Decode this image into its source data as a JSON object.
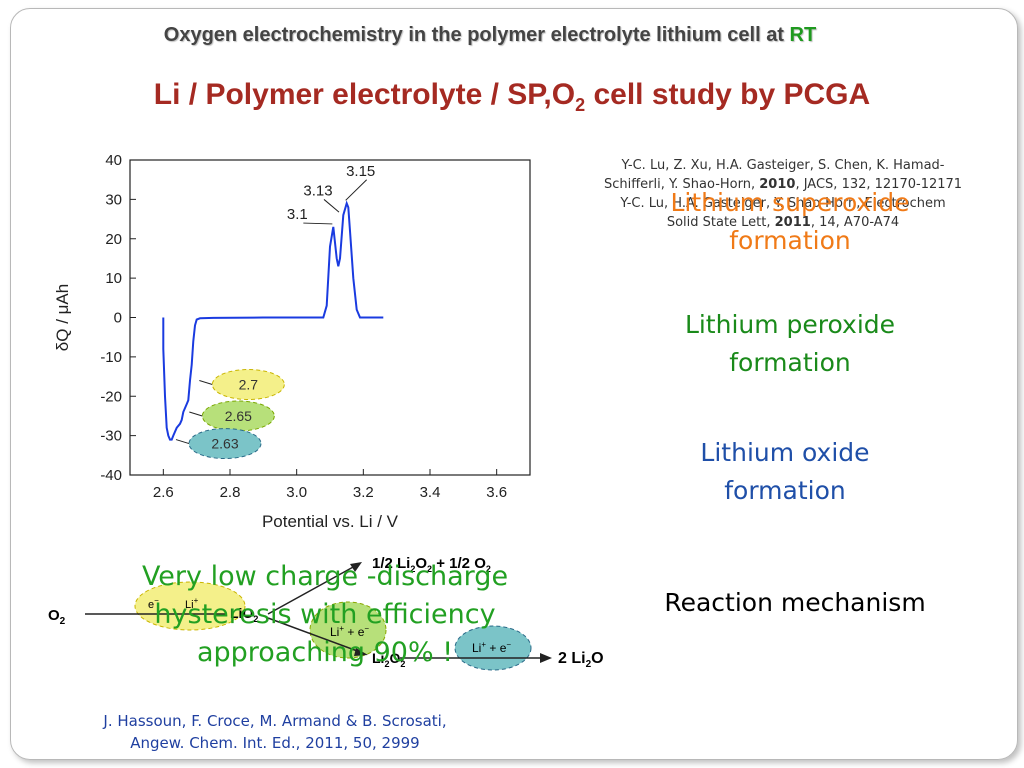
{
  "header": {
    "title_main": "Oxygen electrochemistry in the polymer electrolyte lithium cell at",
    "title_rt": "RT"
  },
  "main_title": {
    "prefix": "Li / Polymer electrolyte / SP,O",
    "sub": "2",
    "suffix": " cell study by PCGA"
  },
  "references": {
    "ref1_line1": "Y-C. Lu, Z. Xu, H.A. Gasteiger, S. Chen, K. Hamad-",
    "ref1_line2a": "Schifferli, Y. Shao-Horn, ",
    "ref1_year": "2010",
    "ref1_line2b": ", JACS, 132, 12170-12171",
    "ref2_line1": "Y-C. Lu, H.A.  Gasteiger, Y. Shao-Horn, Electrochem",
    "ref2_line2a": "Solid State Lett, ",
    "ref2_year": "2011",
    "ref2_line2b": ", 14, A70-A74"
  },
  "labels": {
    "superoxide_1": "Lithium superoxide",
    "superoxide_2": "formation",
    "peroxide_1": "Lithium peroxide",
    "peroxide_2": "formation",
    "oxide_1": "Lithium oxide",
    "oxide_2": "formation",
    "reaction": "Reaction mechanism"
  },
  "hysteresis": {
    "line1": "Very low charge -discharge",
    "line2": "hysteresis with efficiency",
    "line3": "approaching 90% !"
  },
  "citation": {
    "line1": "J. Hassoun, F. Croce, M. Armand & B. Scrosati,",
    "line2": "Angew. Chem. Int. Ed., 2011, 50,  2999"
  },
  "mechanism": {
    "o2": "O",
    "o2_sub": "2",
    "e_bubble": "e",
    "li_bubble1": "Li",
    "li_bubble2": "Li",
    "li_bubble3": "Li",
    "e_minus": "e",
    "lio2": "LiO",
    "lio2_sub": "2",
    "half_top": "1/2 Li",
    "half_top_sub1": "2",
    "half_top_o": "O",
    "half_top_sub2": "2",
    "plus": "+",
    "half_o2": "1/2 O",
    "half_o2_sub": "2",
    "li2o2": "Li",
    "li2o2_sub1": "2",
    "li2o2_o": "O",
    "li2o2_sub2": "2",
    "two_li2o": "2 Li",
    "two_li2o_sub": "2",
    "two_li2o_o": "O"
  },
  "colors": {
    "curve": "#1a3be0",
    "bubble_yellow": "#f4f08a",
    "bubble_green": "#b7e07a",
    "bubble_blue": "#7bc4c8"
  },
  "chart_data": {
    "type": "line",
    "xlabel": "Potential vs. Li / V",
    "ylabel": "δQ / μAh",
    "xlim": [
      2.5,
      3.7
    ],
    "ylim": [
      -40,
      40
    ],
    "x_ticks": [
      2.6,
      2.8,
      3.0,
      3.2,
      3.4,
      3.6
    ],
    "y_ticks": [
      40,
      30,
      20,
      10,
      0,
      -10,
      -20,
      -30,
      -40
    ],
    "x_tick_labels": [
      "2.6",
      "2.8",
      "3.0",
      "3.2",
      "3.4",
      "3.6"
    ],
    "y_tick_labels": [
      "40",
      "30",
      "20",
      "10",
      "0",
      "-10",
      "-20",
      "-30",
      "-40"
    ],
    "series": [
      {
        "x": [
          2.6,
          2.6,
          2.605,
          2.61,
          2.615,
          2.62,
          2.625,
          2.63,
          2.64,
          2.65,
          2.655,
          2.66,
          2.67,
          2.675,
          2.68,
          2.685,
          2.69,
          2.695,
          2.7,
          2.71,
          2.75,
          2.9,
          3.0,
          3.08,
          3.09,
          3.1,
          3.11,
          3.12,
          3.125,
          3.13,
          3.14,
          3.15,
          3.155,
          3.16,
          3.17,
          3.18,
          3.19,
          3.2,
          3.22,
          3.24,
          3.26
        ],
        "y": [
          0,
          -8,
          -20,
          -28,
          -30,
          -31,
          -31,
          -30,
          -28,
          -27,
          -26,
          -24,
          -22,
          -21,
          -16,
          -12,
          -6,
          -2,
          -0.5,
          -0.2,
          -0.1,
          0,
          0,
          0,
          3,
          18,
          23,
          15,
          13,
          15,
          26,
          29,
          28,
          22,
          10,
          2,
          0,
          0,
          0,
          0,
          0
        ]
      }
    ],
    "annotations": [
      {
        "text": "3.15",
        "x": 3.15,
        "y": 29
      },
      {
        "text": "3.13",
        "x": 3.13,
        "y": 26
      },
      {
        "text": "3.1",
        "x": 3.11,
        "y": 23
      },
      {
        "text": "2.7",
        "x": 2.69,
        "y": -16
      },
      {
        "text": "2.65",
        "x": 2.66,
        "y": -24
      },
      {
        "text": "2.63",
        "x": 2.62,
        "y": -31
      }
    ]
  }
}
